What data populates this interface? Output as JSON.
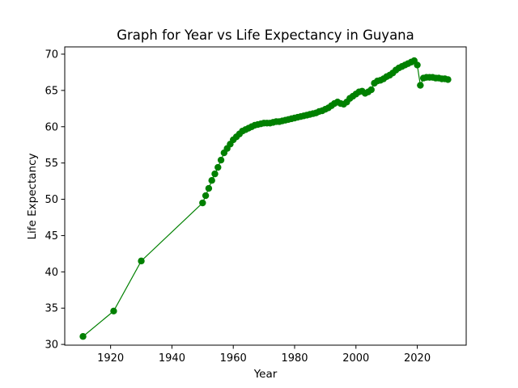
{
  "chart_data": {
    "type": "line",
    "title": "Graph for Year vs Life Expectancy in Guyana",
    "xlabel": "Year",
    "ylabel": "Life Expectancy",
    "xlim": [
      1905.05,
      2035.95
    ],
    "ylim": [
      29.9,
      71.0
    ],
    "xticks": [
      1920,
      1940,
      1960,
      1980,
      2000,
      2020
    ],
    "yticks": [
      30,
      35,
      40,
      45,
      50,
      55,
      60,
      65,
      70
    ],
    "grid": false,
    "legend": "none",
    "series": [
      {
        "color": "#008000",
        "marker": "circle",
        "x": [
          1911,
          1921,
          1930,
          1950,
          1951,
          1952,
          1953,
          1954,
          1955,
          1956,
          1957,
          1958,
          1959,
          1960,
          1961,
          1962,
          1963,
          1964,
          1965,
          1966,
          1967,
          1968,
          1969,
          1970,
          1971,
          1972,
          1973,
          1974,
          1975,
          1976,
          1977,
          1978,
          1979,
          1980,
          1981,
          1982,
          1983,
          1984,
          1985,
          1986,
          1987,
          1988,
          1989,
          1990,
          1991,
          1992,
          1993,
          1994,
          1995,
          1996,
          1997,
          1998,
          1999,
          2000,
          2001,
          2002,
          2003,
          2004,
          2005,
          2006,
          2007,
          2008,
          2009,
          2010,
          2011,
          2012,
          2013,
          2014,
          2015,
          2016,
          2017,
          2018,
          2019,
          2020,
          2021,
          2022,
          2023,
          2024,
          2025,
          2026,
          2027,
          2028,
          2029,
          2030
        ],
        "y": [
          31.1,
          34.6,
          41.5,
          49.5,
          50.5,
          51.5,
          52.6,
          53.5,
          54.4,
          55.4,
          56.4,
          57.0,
          57.6,
          58.2,
          58.6,
          59.0,
          59.4,
          59.6,
          59.8,
          60.0,
          60.2,
          60.3,
          60.4,
          60.5,
          60.5,
          60.5,
          60.6,
          60.7,
          60.7,
          60.8,
          60.9,
          61.0,
          61.1,
          61.2,
          61.3,
          61.4,
          61.5,
          61.6,
          61.7,
          61.8,
          61.9,
          62.1,
          62.2,
          62.4,
          62.6,
          62.9,
          63.2,
          63.4,
          63.2,
          63.1,
          63.4,
          63.9,
          64.2,
          64.5,
          64.8,
          64.9,
          64.6,
          64.8,
          65.1,
          66.0,
          66.3,
          66.4,
          66.6,
          66.9,
          67.1,
          67.4,
          67.8,
          68.1,
          68.3,
          68.5,
          68.7,
          68.9,
          69.1,
          68.5,
          65.7,
          66.7,
          66.8,
          66.8,
          66.8,
          66.7,
          66.7,
          66.6,
          66.6,
          66.5
        ]
      }
    ]
  }
}
